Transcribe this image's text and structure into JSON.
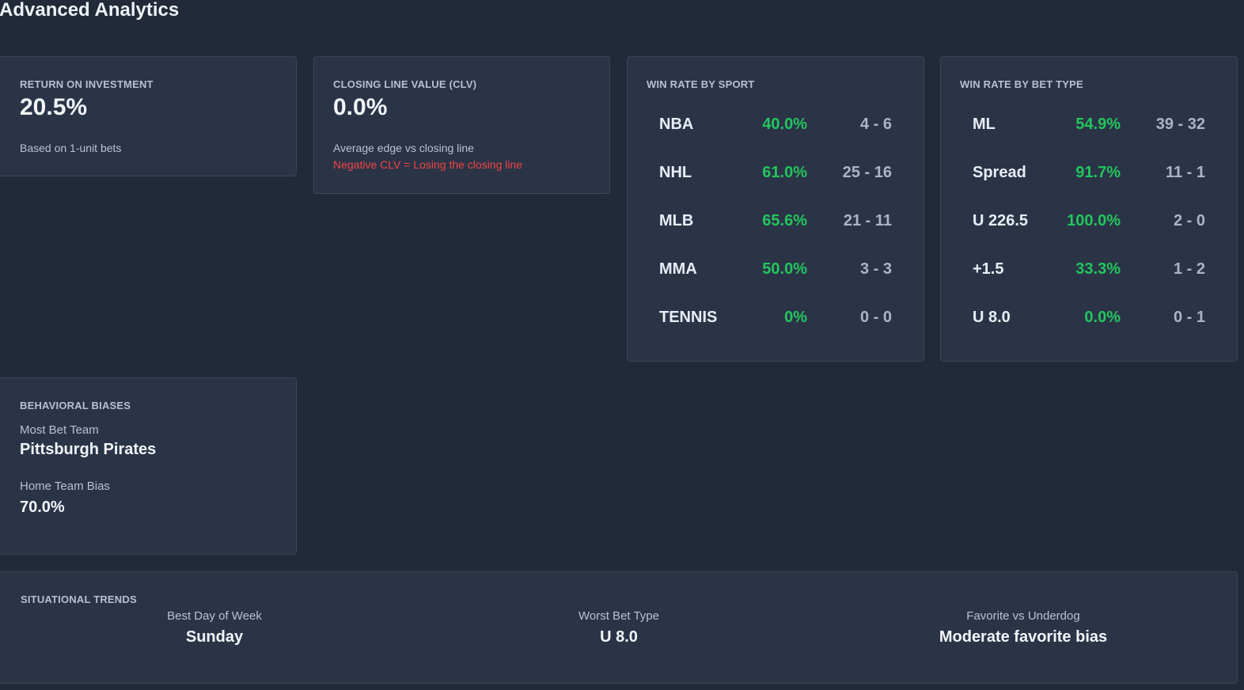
{
  "page": {
    "title": "Advanced Analytics"
  },
  "roi": {
    "label": "RETURN ON INVESTMENT",
    "value": "20.5%",
    "note": "Based on 1-unit bets"
  },
  "clv": {
    "label": "CLOSING LINE VALUE (CLV)",
    "value": "0.0%",
    "note": "Average edge vs closing line",
    "warning": "Negative CLV = Losing the closing line"
  },
  "win_rate_sport": {
    "label": "WIN RATE BY SPORT",
    "rows": [
      {
        "name": "NBA",
        "pct": "40.0%",
        "record": "4 - 6"
      },
      {
        "name": "NHL",
        "pct": "61.0%",
        "record": "25 - 16"
      },
      {
        "name": "MLB",
        "pct": "65.6%",
        "record": "21 - 11"
      },
      {
        "name": "MMA",
        "pct": "50.0%",
        "record": "3 - 3"
      },
      {
        "name": "TENNIS",
        "pct": "0%",
        "record": "0 - 0"
      }
    ]
  },
  "win_rate_bet_type": {
    "label": "WIN RATE BY BET TYPE",
    "rows": [
      {
        "name": "ML",
        "pct": "54.9%",
        "record": "39 - 32"
      },
      {
        "name": "Spread",
        "pct": "91.7%",
        "record": "11 - 1"
      },
      {
        "name": "U 226.5",
        "pct": "100.0%",
        "record": "2 - 0"
      },
      {
        "name": "+1.5",
        "pct": "33.3%",
        "record": "1 - 2"
      },
      {
        "name": "U 8.0",
        "pct": "0.0%",
        "record": "0 - 1"
      }
    ]
  },
  "biases": {
    "label": "BEHAVIORAL BIASES",
    "most_bet_team_label": "Most Bet Team",
    "most_bet_team": "Pittsburgh Pirates",
    "home_bias_label": "Home Team Bias",
    "home_bias": "70.0%"
  },
  "trends": {
    "label": "SITUATIONAL TRENDS",
    "best_day_label": "Best Day of Week",
    "best_day": "Sunday",
    "worst_type_label": "Worst Bet Type",
    "worst_type": "U 8.0",
    "fav_dog_label": "Favorite vs Underdog",
    "fav_dog": "Moderate favorite bias"
  },
  "colors": {
    "background": "#222a39",
    "card": "#2b3447",
    "positive": "#22c55e",
    "negative": "#ef4444"
  }
}
